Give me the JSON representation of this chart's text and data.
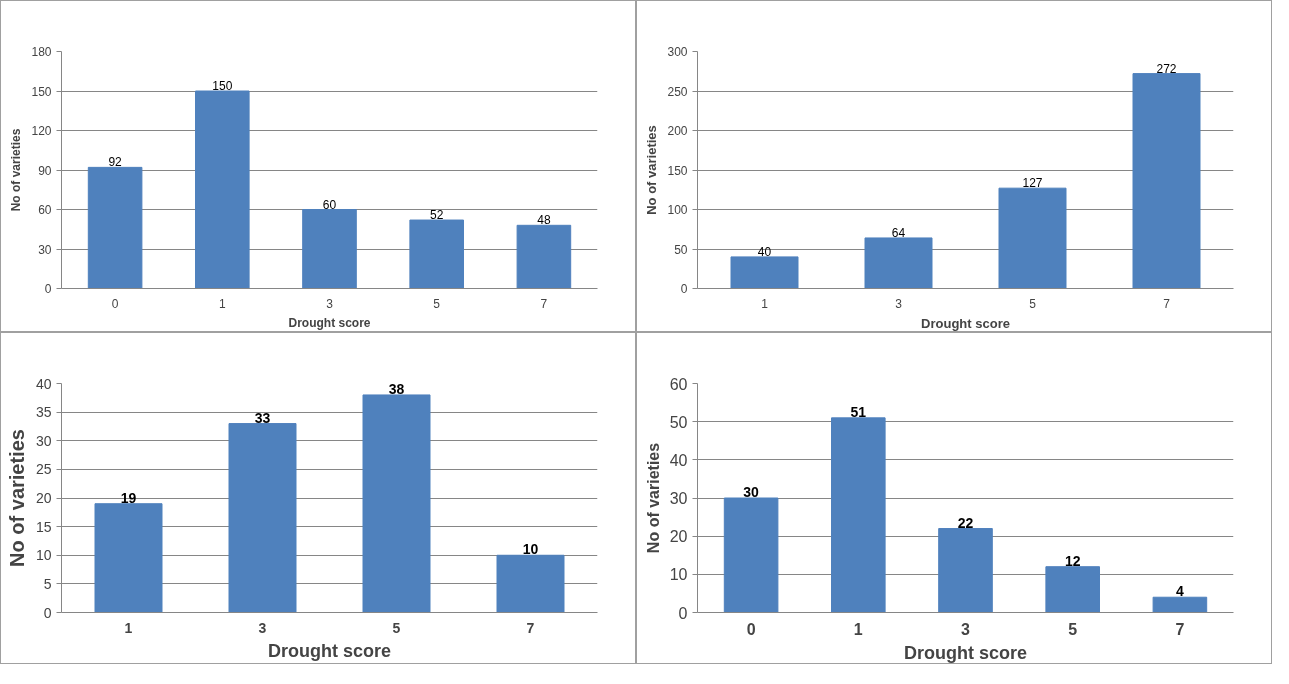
{
  "chart_data": [
    {
      "type": "bar",
      "categories": [
        "0",
        "1",
        "3",
        "5",
        "7"
      ],
      "values": [
        92,
        150,
        60,
        52,
        48
      ],
      "color": "#4f81bd",
      "xlabel": "Drought score",
      "ylabel": "No of varieties",
      "ylim": [
        0,
        180
      ],
      "yticks": [
        0,
        30,
        60,
        90,
        120,
        150,
        180
      ],
      "grid": "y",
      "data_labels": true
    },
    {
      "type": "bar",
      "categories": [
        "1",
        "3",
        "5",
        "7"
      ],
      "values": [
        40,
        64,
        127,
        272
      ],
      "color": "#4f81bd",
      "xlabel": "Drought score",
      "ylabel": "No of varieties",
      "ylim": [
        0,
        300
      ],
      "yticks": [
        0,
        50,
        100,
        150,
        200,
        250,
        300
      ],
      "grid": "y",
      "data_labels": true
    },
    {
      "type": "bar",
      "categories": [
        "1",
        "3",
        "5",
        "7"
      ],
      "values": [
        19,
        33,
        38,
        10
      ],
      "color": "#4f81bd",
      "xlabel": "Drought score",
      "ylabel": "No of varieties",
      "ylim": [
        0,
        40
      ],
      "yticks": [
        0,
        5,
        10,
        15,
        20,
        25,
        30,
        35,
        40
      ],
      "grid": "y",
      "data_labels": true
    },
    {
      "type": "bar",
      "categories": [
        "0",
        "1",
        "3",
        "5",
        "7"
      ],
      "values": [
        30,
        51,
        22,
        12,
        4
      ],
      "color": "#4f81bd",
      "xlabel": "Drought score",
      "ylabel": "No of varieties",
      "ylim": [
        0,
        60
      ],
      "yticks": [
        0,
        10,
        20,
        30,
        40,
        50,
        60
      ],
      "grid": "y",
      "data_labels": true
    }
  ]
}
